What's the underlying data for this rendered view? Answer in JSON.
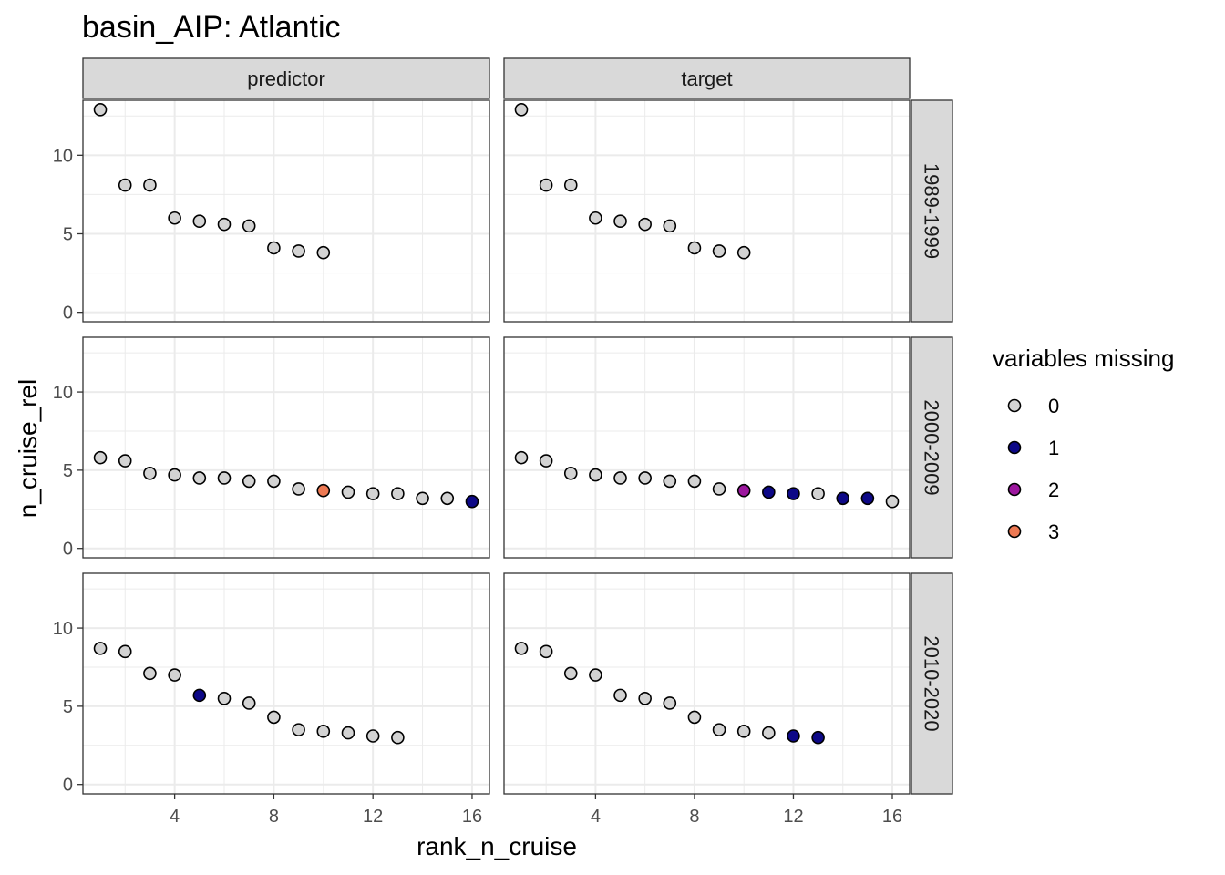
{
  "chart_data": {
    "type": "scatter",
    "title": "basin_AIP: Atlantic",
    "xlabel": "rank_n_cruise",
    "ylabel": "n_cruise_rel",
    "xlim": [
      0.3,
      16.7
    ],
    "ylim": [
      -0.6,
      13.5
    ],
    "x_ticks": [
      4,
      8,
      12,
      16
    ],
    "x_tick_labels": [
      "4",
      "8",
      "12",
      "16"
    ],
    "y_ticks": [
      0,
      5,
      10
    ],
    "y_tick_labels": [
      "0",
      "5",
      "10"
    ],
    "grid": true,
    "legend": {
      "title": "variables missing",
      "position": "right",
      "entries": [
        {
          "label": "0",
          "color": "#d3d3d3"
        },
        {
          "label": "1",
          "color": "#0d0887"
        },
        {
          "label": "2",
          "color": "#9c179e"
        },
        {
          "label": "3",
          "color": "#ed7953"
        }
      ]
    },
    "column_strips": [
      "predictor",
      "target"
    ],
    "row_strips": [
      "1989-1999",
      "2000-2009",
      "2010-2020"
    ],
    "panels": [
      {
        "col": "predictor",
        "row": "1989-1999",
        "points": [
          [
            1,
            12.9,
            0
          ],
          [
            2,
            8.1,
            0
          ],
          [
            3,
            8.1,
            0
          ],
          [
            4,
            6.0,
            0
          ],
          [
            5,
            5.8,
            0
          ],
          [
            6,
            5.6,
            0
          ],
          [
            7,
            5.5,
            0
          ],
          [
            8,
            4.1,
            0
          ],
          [
            9,
            3.9,
            0
          ],
          [
            10,
            3.8,
            0
          ]
        ]
      },
      {
        "col": "target",
        "row": "1989-1999",
        "points": [
          [
            1,
            12.9,
            0
          ],
          [
            2,
            8.1,
            0
          ],
          [
            3,
            8.1,
            0
          ],
          [
            4,
            6.0,
            0
          ],
          [
            5,
            5.8,
            0
          ],
          [
            6,
            5.6,
            0
          ],
          [
            7,
            5.5,
            0
          ],
          [
            8,
            4.1,
            0
          ],
          [
            9,
            3.9,
            0
          ],
          [
            10,
            3.8,
            0
          ]
        ]
      },
      {
        "col": "predictor",
        "row": "2000-2009",
        "points": [
          [
            1,
            5.8,
            0
          ],
          [
            2,
            5.6,
            0
          ],
          [
            3,
            4.8,
            0
          ],
          [
            4,
            4.7,
            0
          ],
          [
            5,
            4.5,
            0
          ],
          [
            6,
            4.5,
            0
          ],
          [
            7,
            4.3,
            0
          ],
          [
            8,
            4.3,
            0
          ],
          [
            9,
            3.8,
            0
          ],
          [
            10,
            3.7,
            3
          ],
          [
            11,
            3.6,
            0
          ],
          [
            12,
            3.5,
            0
          ],
          [
            13,
            3.5,
            0
          ],
          [
            14,
            3.2,
            0
          ],
          [
            15,
            3.2,
            0
          ],
          [
            16,
            3.0,
            1
          ]
        ]
      },
      {
        "col": "target",
        "row": "2000-2009",
        "points": [
          [
            1,
            5.8,
            0
          ],
          [
            2,
            5.6,
            0
          ],
          [
            3,
            4.8,
            0
          ],
          [
            4,
            4.7,
            0
          ],
          [
            5,
            4.5,
            0
          ],
          [
            6,
            4.5,
            0
          ],
          [
            7,
            4.3,
            0
          ],
          [
            8,
            4.3,
            0
          ],
          [
            9,
            3.8,
            0
          ],
          [
            10,
            3.7,
            2
          ],
          [
            11,
            3.6,
            1
          ],
          [
            12,
            3.5,
            1
          ],
          [
            13,
            3.5,
            0
          ],
          [
            14,
            3.2,
            1
          ],
          [
            15,
            3.2,
            1
          ],
          [
            16,
            3.0,
            0
          ]
        ]
      },
      {
        "col": "predictor",
        "row": "2010-2020",
        "points": [
          [
            1,
            8.7,
            0
          ],
          [
            2,
            8.5,
            0
          ],
          [
            3,
            7.1,
            0
          ],
          [
            4,
            7.0,
            0
          ],
          [
            5,
            5.7,
            1
          ],
          [
            6,
            5.5,
            0
          ],
          [
            7,
            5.2,
            0
          ],
          [
            8,
            4.3,
            0
          ],
          [
            9,
            3.5,
            0
          ],
          [
            10,
            3.4,
            0
          ],
          [
            11,
            3.3,
            0
          ],
          [
            12,
            3.1,
            0
          ],
          [
            13,
            3.0,
            0
          ]
        ]
      },
      {
        "col": "target",
        "row": "2010-2020",
        "points": [
          [
            1,
            8.7,
            0
          ],
          [
            2,
            8.5,
            0
          ],
          [
            3,
            7.1,
            0
          ],
          [
            4,
            7.0,
            0
          ],
          [
            5,
            5.7,
            0
          ],
          [
            6,
            5.5,
            0
          ],
          [
            7,
            5.2,
            0
          ],
          [
            8,
            4.3,
            0
          ],
          [
            9,
            3.5,
            0
          ],
          [
            10,
            3.4,
            0
          ],
          [
            11,
            3.3,
            0
          ],
          [
            12,
            3.1,
            1
          ],
          [
            13,
            3.0,
            1
          ]
        ]
      }
    ]
  }
}
